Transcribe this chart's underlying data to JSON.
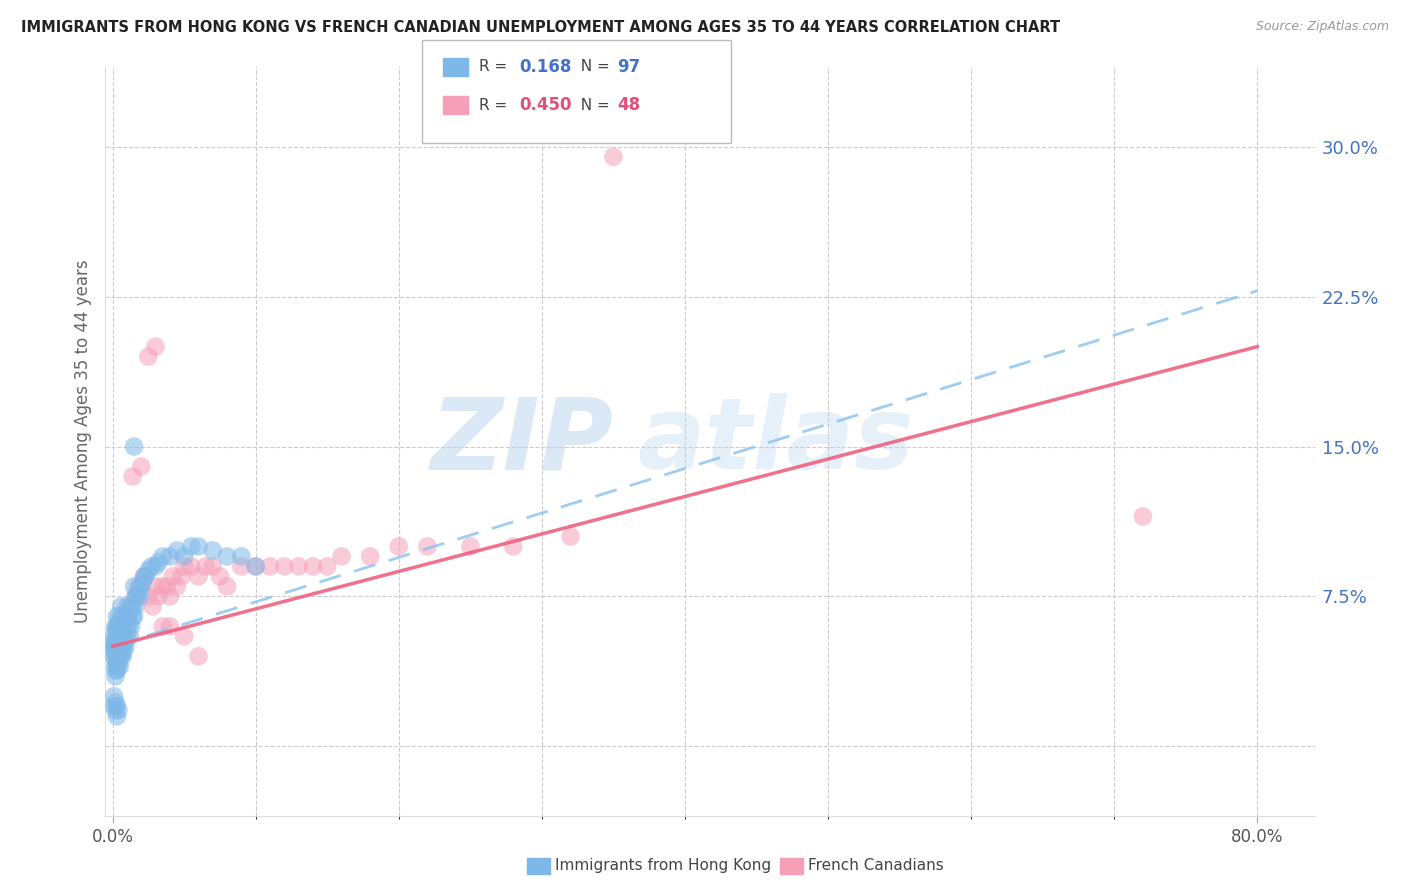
{
  "title": "IMMIGRANTS FROM HONG KONG VS FRENCH CANADIAN UNEMPLOYMENT AMONG AGES 35 TO 44 YEARS CORRELATION CHART",
  "source": "Source: ZipAtlas.com",
  "ylabel": "Unemployment Among Ages 35 to 44 years",
  "ytick_positions": [
    0.0,
    0.075,
    0.15,
    0.225,
    0.3
  ],
  "ytick_labels": [
    "",
    "7.5%",
    "15.0%",
    "22.5%",
    "30.0%"
  ],
  "xlim": [
    -0.005,
    0.84
  ],
  "ylim": [
    -0.035,
    0.34
  ],
  "legend1_R": "0.168",
  "legend1_N": "97",
  "legend2_R": "0.450",
  "legend2_N": "48",
  "legend1_label": "Immigrants from Hong Kong",
  "legend2_label": "French Canadians",
  "blue_color": "#7EB8E8",
  "pink_color": "#F5A0B8",
  "trend_blue_color": "#8EC4EE",
  "trend_pink_color": "#F06080",
  "R_color_blue": "#4472C4",
  "R_color_pink": "#E0507A",
  "title_color": "#222222",
  "ytick_color": "#4472C4",
  "watermark_zip": "ZIP",
  "watermark_atlas": "atlas",
  "hk_x": [
    0.001,
    0.001,
    0.001,
    0.001,
    0.001,
    0.002,
    0.002,
    0.002,
    0.002,
    0.002,
    0.002,
    0.002,
    0.002,
    0.002,
    0.003,
    0.003,
    0.003,
    0.003,
    0.003,
    0.003,
    0.003,
    0.003,
    0.003,
    0.004,
    0.004,
    0.004,
    0.004,
    0.004,
    0.004,
    0.004,
    0.005,
    0.005,
    0.005,
    0.005,
    0.005,
    0.005,
    0.005,
    0.006,
    0.006,
    0.006,
    0.006,
    0.006,
    0.007,
    0.007,
    0.007,
    0.007,
    0.008,
    0.008,
    0.008,
    0.008,
    0.009,
    0.009,
    0.009,
    0.01,
    0.01,
    0.01,
    0.011,
    0.011,
    0.012,
    0.012,
    0.013,
    0.013,
    0.014,
    0.014,
    0.015,
    0.015,
    0.016,
    0.016,
    0.017,
    0.018,
    0.019,
    0.02,
    0.021,
    0.022,
    0.023,
    0.025,
    0.027,
    0.03,
    0.032,
    0.035,
    0.04,
    0.045,
    0.05,
    0.055,
    0.06,
    0.07,
    0.08,
    0.09,
    0.1,
    0.015,
    0.001,
    0.001,
    0.002,
    0.002,
    0.003,
    0.003,
    0.004
  ],
  "hk_y": [
    0.05,
    0.048,
    0.052,
    0.045,
    0.055,
    0.05,
    0.048,
    0.053,
    0.058,
    0.043,
    0.04,
    0.038,
    0.035,
    0.06,
    0.05,
    0.045,
    0.055,
    0.06,
    0.042,
    0.038,
    0.065,
    0.048,
    0.052,
    0.055,
    0.05,
    0.06,
    0.045,
    0.04,
    0.058,
    0.062,
    0.05,
    0.055,
    0.045,
    0.06,
    0.04,
    0.065,
    0.048,
    0.055,
    0.05,
    0.06,
    0.045,
    0.07,
    0.055,
    0.05,
    0.06,
    0.045,
    0.058,
    0.052,
    0.062,
    0.048,
    0.055,
    0.065,
    0.05,
    0.06,
    0.055,
    0.07,
    0.06,
    0.065,
    0.055,
    0.068,
    0.06,
    0.07,
    0.065,
    0.07,
    0.065,
    0.08,
    0.07,
    0.075,
    0.075,
    0.078,
    0.075,
    0.08,
    0.082,
    0.085,
    0.085,
    0.088,
    0.09,
    0.09,
    0.092,
    0.095,
    0.095,
    0.098,
    0.095,
    0.1,
    0.1,
    0.098,
    0.095,
    0.095,
    0.09,
    0.15,
    0.025,
    0.02,
    0.022,
    0.018,
    0.02,
    0.015,
    0.018
  ],
  "fc_x": [
    0.005,
    0.008,
    0.01,
    0.012,
    0.014,
    0.016,
    0.018,
    0.02,
    0.022,
    0.025,
    0.028,
    0.03,
    0.032,
    0.035,
    0.038,
    0.04,
    0.042,
    0.045,
    0.048,
    0.05,
    0.055,
    0.06,
    0.065,
    0.07,
    0.075,
    0.08,
    0.09,
    0.1,
    0.11,
    0.12,
    0.13,
    0.14,
    0.15,
    0.16,
    0.18,
    0.2,
    0.22,
    0.25,
    0.28,
    0.32,
    0.025,
    0.03,
    0.035,
    0.04,
    0.05,
    0.06,
    0.72,
    0.35
  ],
  "fc_y": [
    0.06,
    0.065,
    0.065,
    0.07,
    0.135,
    0.075,
    0.08,
    0.14,
    0.085,
    0.075,
    0.07,
    0.08,
    0.075,
    0.08,
    0.08,
    0.075,
    0.085,
    0.08,
    0.085,
    0.09,
    0.09,
    0.085,
    0.09,
    0.09,
    0.085,
    0.08,
    0.09,
    0.09,
    0.09,
    0.09,
    0.09,
    0.09,
    0.09,
    0.095,
    0.095,
    0.1,
    0.1,
    0.1,
    0.1,
    0.105,
    0.195,
    0.2,
    0.06,
    0.06,
    0.055,
    0.045,
    0.115,
    0.295
  ],
  "hk_trend": [
    0.0,
    0.8,
    0.05,
    0.228
  ],
  "fc_trend": [
    0.0,
    0.8,
    0.05,
    0.2
  ],
  "grid_color": "#cccccc",
  "spine_color": "#dddddd",
  "minor_xticks": [
    0.1,
    0.2,
    0.3,
    0.4,
    0.5,
    0.6,
    0.7
  ]
}
